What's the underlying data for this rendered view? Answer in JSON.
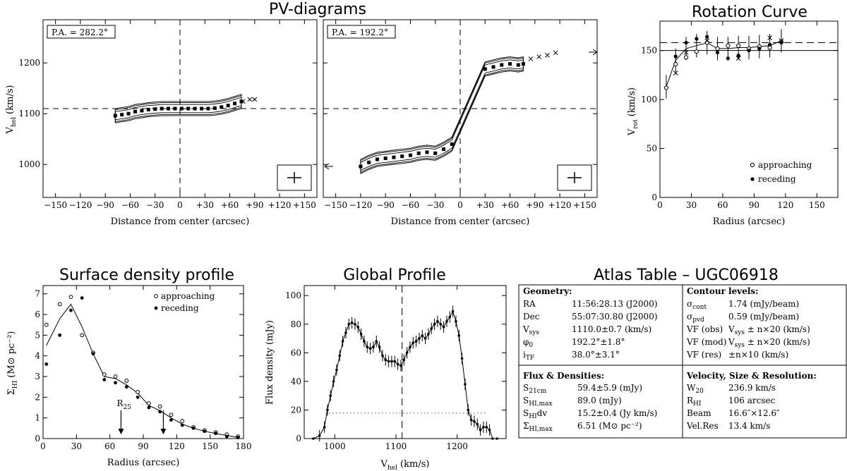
{
  "titles": {
    "pv": "PV-diagrams",
    "rc": "Rotation Curve",
    "sd": "Surface density profile",
    "gp": "Global Profile",
    "atlas": "Atlas Table – UGC06918"
  },
  "pv_panels": [
    {
      "pa_label": "P.A. = 282.2°",
      "xlabel": "Distance from center (arcsec)",
      "ylabel": "V",
      "ylabel_sub": "hel",
      "ylabel_unit": " (km/s)",
      "xticks": [
        "−150",
        "−120",
        "−90",
        "−60",
        "−30",
        "0",
        "+30",
        "+60",
        "+90",
        "+120",
        "+150"
      ],
      "xtick_vals": [
        -150,
        -120,
        -90,
        -60,
        -30,
        0,
        30,
        60,
        90,
        120,
        150
      ],
      "yticks": [
        "1000",
        "1100",
        "1200"
      ],
      "ytick_vals": [
        1000,
        1100,
        1200
      ],
      "xlim": [
        -165,
        165
      ],
      "ylim": [
        935,
        1285
      ],
      "vsys": 1110,
      "points": [
        [
          -78,
          1096
        ],
        [
          -70,
          1098
        ],
        [
          -62,
          1100
        ],
        [
          -54,
          1104
        ],
        [
          -46,
          1106
        ],
        [
          -38,
          1108
        ],
        [
          -30,
          1109
        ],
        [
          -22,
          1110
        ],
        [
          -14,
          1110
        ],
        [
          -6,
          1110
        ],
        [
          2,
          1110
        ],
        [
          10,
          1110
        ],
        [
          18,
          1110
        ],
        [
          26,
          1110
        ],
        [
          34,
          1110
        ],
        [
          42,
          1111
        ],
        [
          50,
          1113
        ],
        [
          58,
          1116
        ],
        [
          66,
          1120
        ],
        [
          74,
          1124
        ]
      ],
      "crosses": [
        [
          76,
          1124
        ],
        [
          84,
          1128
        ],
        [
          90,
          1128
        ]
      ]
    },
    {
      "pa_label": "P.A. = 192.2°",
      "xlabel": "Distance from center (arcsec)",
      "xticks": [
        "−150",
        "−120",
        "−90",
        "−60",
        "−30",
        "0",
        "+30",
        "+60",
        "+90",
        "+120",
        "+150"
      ],
      "xtick_vals": [
        -150,
        -120,
        -90,
        -60,
        -30,
        0,
        30,
        60,
        90,
        120,
        150
      ],
      "xlim": [
        -165,
        165
      ],
      "ylim": [
        935,
        1285
      ],
      "vsys": 1110,
      "points": [
        [
          -120,
          996
        ],
        [
          -110,
          1004
        ],
        [
          -100,
          1010
        ],
        [
          -90,
          1012
        ],
        [
          -80,
          1014
        ],
        [
          -70,
          1016
        ],
        [
          -60,
          1018
        ],
        [
          -50,
          1022
        ],
        [
          -40,
          1024
        ],
        [
          -30,
          1022
        ],
        [
          -20,
          1030
        ],
        [
          -10,
          1040
        ],
        [
          30,
          1188
        ],
        [
          40,
          1192
        ],
        [
          50,
          1196
        ],
        [
          60,
          1198
        ],
        [
          70,
          1196
        ],
        [
          76,
          1198
        ]
      ],
      "crosses": [
        [
          85,
          1208
        ],
        [
          95,
          1212
        ],
        [
          105,
          1215
        ],
        [
          115,
          1220
        ]
      ]
    }
  ],
  "rotation_curve": {
    "xlabel": "Radius (arcsec)",
    "ylabel": "V",
    "ylabel_sub": "rot",
    "ylabel_unit": " (km/s)",
    "xticks": [
      "0",
      "30",
      "60",
      "90",
      "120",
      "150"
    ],
    "xtick_vals": [
      0,
      30,
      60,
      90,
      120,
      150
    ],
    "yticks": [
      "0",
      "50",
      "100",
      "150"
    ],
    "ytick_vals": [
      0,
      50,
      100,
      150
    ],
    "xlim": [
      0,
      170
    ],
    "ylim": [
      0,
      180
    ],
    "legend": [
      "approaching",
      "receding"
    ],
    "curve": [
      [
        6,
        113
      ],
      [
        15,
        140
      ],
      [
        25,
        152
      ],
      [
        35,
        155
      ],
      [
        45,
        158
      ],
      [
        55,
        152
      ],
      [
        65,
        152
      ],
      [
        75,
        153
      ],
      [
        85,
        153
      ],
      [
        95,
        154
      ],
      [
        105,
        155
      ],
      [
        116,
        160
      ]
    ],
    "approaching": [
      [
        6,
        112
      ],
      [
        15,
        136
      ],
      [
        25,
        143
      ],
      [
        35,
        149
      ],
      [
        45,
        158
      ],
      [
        55,
        152
      ],
      [
        65,
        155
      ],
      [
        75,
        155
      ],
      [
        85,
        152
      ],
      [
        95,
        154
      ],
      [
        105,
        153
      ],
      [
        116,
        159
      ]
    ],
    "receding": [
      [
        15,
        144
      ],
      [
        25,
        158
      ],
      [
        35,
        162
      ],
      [
        45,
        164
      ],
      [
        55,
        148
      ],
      [
        65,
        142
      ],
      [
        75,
        145
      ],
      [
        85,
        150
      ],
      [
        95,
        152
      ],
      [
        105,
        156
      ],
      [
        116,
        158
      ]
    ],
    "crosses": [
      [
        15,
        127
      ],
      [
        25,
        148
      ],
      [
        45,
        160
      ],
      [
        75,
        142
      ],
      [
        105,
        163
      ],
      [
        116,
        160
      ]
    ],
    "dashed_level": 158,
    "solid_level": 150
  },
  "surface_density": {
    "xlabel": "Radius (arcsec)",
    "ylabel": "Σ",
    "ylabel_sub": "HI",
    "ylabel_unit": " (M⊙ pc⁻²)",
    "xticks": [
      "0",
      "30",
      "60",
      "90",
      "120",
      "150",
      "180"
    ],
    "xtick_vals": [
      0,
      30,
      60,
      90,
      120,
      150,
      180
    ],
    "yticks": [
      "0",
      "1",
      "2",
      "3",
      "4",
      "5",
      "6",
      "7"
    ],
    "ytick_vals": [
      0,
      1,
      2,
      3,
      4,
      5,
      6,
      7
    ],
    "xlim": [
      0,
      180
    ],
    "ylim": [
      0,
      7.4
    ],
    "legend": [
      "approaching",
      "receding"
    ],
    "r25_label": "R",
    "r25_sub": "25",
    "arrows_x": [
      70,
      108
    ],
    "curve": [
      [
        3,
        4.5
      ],
      [
        15,
        5.8
      ],
      [
        25,
        6.5
      ],
      [
        35,
        5.4
      ],
      [
        45,
        4.1
      ],
      [
        55,
        3.0
      ],
      [
        65,
        2.9
      ],
      [
        75,
        2.6
      ],
      [
        85,
        2.2
      ],
      [
        95,
        1.6
      ],
      [
        105,
        1.35
      ],
      [
        115,
        1.0
      ],
      [
        125,
        0.7
      ],
      [
        135,
        0.5
      ],
      [
        145,
        0.35
      ],
      [
        155,
        0.25
      ],
      [
        165,
        0.15
      ],
      [
        175,
        0.05
      ]
    ],
    "approaching": [
      [
        3,
        5.5
      ],
      [
        15,
        6.5
      ],
      [
        25,
        6.85
      ],
      [
        35,
        5.0
      ],
      [
        45,
        4.15
      ],
      [
        55,
        3.1
      ],
      [
        65,
        3.0
      ],
      [
        75,
        2.8
      ],
      [
        85,
        2.25
      ],
      [
        95,
        1.7
      ],
      [
        105,
        1.55
      ],
      [
        115,
        1.15
      ],
      [
        125,
        0.85
      ],
      [
        135,
        0.55
      ],
      [
        145,
        0.4
      ],
      [
        155,
        0.3
      ],
      [
        165,
        0.2
      ],
      [
        175,
        0.1
      ]
    ],
    "receding": [
      [
        3,
        3.6
      ],
      [
        15,
        5.0
      ],
      [
        25,
        6.2
      ],
      [
        35,
        6.8
      ],
      [
        45,
        4.1
      ],
      [
        55,
        2.85
      ],
      [
        65,
        2.7
      ],
      [
        75,
        2.5
      ],
      [
        85,
        2.0
      ],
      [
        95,
        1.5
      ],
      [
        105,
        1.3
      ],
      [
        115,
        0.9
      ],
      [
        125,
        0.65
      ],
      [
        135,
        0.5
      ],
      [
        145,
        0.35
      ],
      [
        155,
        0.25
      ],
      [
        165,
        0.1
      ],
      [
        175,
        0.05
      ]
    ]
  },
  "global_profile": {
    "xlabel": "V",
    "xlabel_sub": "hel",
    "xlabel_unit": " (km/s)",
    "ylabel": "Flux density (mJy)",
    "xticks": [
      "1000",
      "1100",
      "1200"
    ],
    "xtick_vals": [
      1000,
      1100,
      1200
    ],
    "yticks": [
      "0",
      "20",
      "40",
      "60",
      "80",
      "100"
    ],
    "ytick_vals": [
      0,
      20,
      40,
      60,
      80,
      100
    ],
    "xlim": [
      950,
      1280
    ],
    "ylim": [
      0,
      107
    ],
    "vsys": 1110,
    "dotted_level": 17.8,
    "points": [
      [
        965,
        0
      ],
      [
        975,
        2
      ],
      [
        983,
        8
      ],
      [
        988,
        20
      ],
      [
        993,
        30
      ],
      [
        998,
        40
      ],
      [
        1003,
        48
      ],
      [
        1008,
        58
      ],
      [
        1013,
        68
      ],
      [
        1018,
        74
      ],
      [
        1023,
        80
      ],
      [
        1028,
        81
      ],
      [
        1033,
        80
      ],
      [
        1038,
        78
      ],
      [
        1043,
        73
      ],
      [
        1048,
        68
      ],
      [
        1053,
        64
      ],
      [
        1058,
        63
      ],
      [
        1063,
        64
      ],
      [
        1068,
        68
      ],
      [
        1073,
        64
      ],
      [
        1078,
        58
      ],
      [
        1083,
        55
      ],
      [
        1088,
        54
      ],
      [
        1093,
        54
      ],
      [
        1098,
        54
      ],
      [
        1103,
        52
      ],
      [
        1108,
        51
      ],
      [
        1113,
        55
      ],
      [
        1118,
        60
      ],
      [
        1123,
        64
      ],
      [
        1128,
        67
      ],
      [
        1133,
        68
      ],
      [
        1138,
        70
      ],
      [
        1143,
        72
      ],
      [
        1148,
        70
      ],
      [
        1153,
        73
      ],
      [
        1158,
        77
      ],
      [
        1163,
        80
      ],
      [
        1168,
        82
      ],
      [
        1173,
        80
      ],
      [
        1178,
        78
      ],
      [
        1183,
        82
      ],
      [
        1188,
        85
      ],
      [
        1193,
        89
      ],
      [
        1198,
        82
      ],
      [
        1203,
        72
      ],
      [
        1208,
        56
      ],
      [
        1213,
        38
      ],
      [
        1218,
        20
      ],
      [
        1223,
        13
      ],
      [
        1228,
        12
      ],
      [
        1233,
        10
      ],
      [
        1238,
        6
      ],
      [
        1243,
        8
      ],
      [
        1248,
        8
      ],
      [
        1253,
        6
      ],
      [
        1258,
        0
      ],
      [
        1265,
        0
      ]
    ]
  },
  "atlas_table": {
    "geometry": {
      "heading": "Geometry:",
      "rows": [
        [
          "RA",
          "11:56:28.13 (J2000)"
        ],
        [
          "Dec",
          "55:07:30.80 (J2000)"
        ],
        [
          "V",
          "1110.0±0.7 (km/s)"
        ],
        [
          "φ",
          "192.2°±1.8°"
        ],
        [
          "i",
          "38.0°±3.1°"
        ]
      ],
      "subs": [
        "",
        "",
        "sys",
        "0",
        "TF"
      ]
    },
    "contours": {
      "heading": "Contour levels:",
      "rows": [
        [
          "σ",
          "1.74 (mJy/beam)"
        ],
        [
          "σ",
          "0.59 (mJy/beam)"
        ],
        [
          "VF (obs)",
          "V"
        ],
        [
          "VF (mod)",
          "V"
        ],
        [
          "VF (res)",
          "±n×10 (km/s)"
        ]
      ],
      "subs": [
        "cont",
        "pvd",
        "",
        ""
      ],
      "vsys_tail": " ± n×20 (km/s)",
      "vsys_sub": "sys"
    },
    "flux": {
      "heading": "Flux & Densities:",
      "rows": [
        [
          "S",
          "59.4±5.9 (mJy)"
        ],
        [
          "S",
          "89.0 (mJy)"
        ],
        [
          "S",
          "15.2±0.4 (Jy km/s)"
        ],
        [
          "Σ",
          "6.51 (M⊙ pc⁻²)"
        ]
      ],
      "subs": [
        "21cm",
        "HI,max",
        "HI",
        "HI,max"
      ],
      "suffix": [
        "",
        "",
        "dv",
        ""
      ]
    },
    "velocity": {
      "heading": "Velocity, Size & Resolution:",
      "rows": [
        [
          "W",
          "236.9 km/s"
        ],
        [
          "R",
          "106 arcsec"
        ],
        [
          "Beam",
          "16.6″×12.6″"
        ],
        [
          "Vel.Res",
          "13.4 km/s"
        ]
      ],
      "subs": [
        "20",
        "HI",
        "",
        ""
      ]
    }
  }
}
